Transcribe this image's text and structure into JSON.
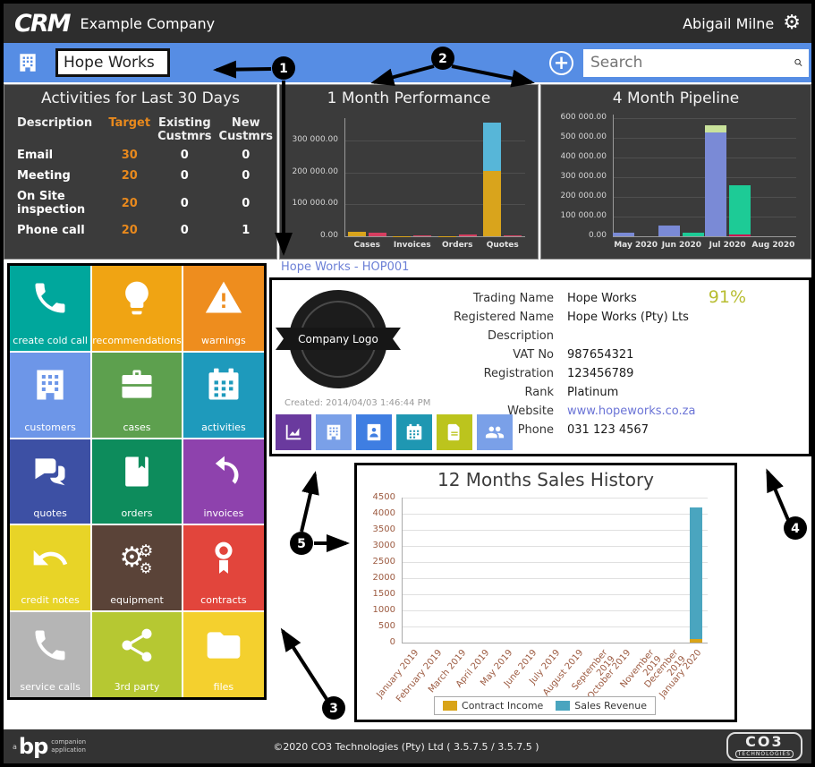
{
  "header": {
    "logo": "CRM",
    "company": "Example Company",
    "user": "Abigail Milne",
    "gear_icon": "gear-icon"
  },
  "toolbar": {
    "customer_input": "Hope Works",
    "search_placeholder": "Search",
    "plus_icon": "plus-circle-icon",
    "building_icon": "building-icon",
    "search_icon": "magnifier-icon"
  },
  "activities": {
    "title": "Activities for Last 30 Days",
    "columns": [
      "Description",
      "Target",
      "Existing\nCustmrs",
      "New\nCustmrs"
    ],
    "rows": [
      {
        "description": "Email",
        "target": "30",
        "existing": "0",
        "new": "0"
      },
      {
        "description": "Meeting",
        "target": "20",
        "existing": "0",
        "new": "0"
      },
      {
        "description": "On Site inspection",
        "target": "20",
        "existing": "0",
        "new": "0"
      },
      {
        "description": "Phone call",
        "target": "20",
        "existing": "0",
        "new": "1"
      }
    ]
  },
  "tiles": [
    {
      "label": "create cold call",
      "color": "#00a79c",
      "icon": "phone-icon"
    },
    {
      "label": "recommendations",
      "color": "#f0a413",
      "icon": "lightbulb-icon"
    },
    {
      "label": "warnings",
      "color": "#ee8d1e",
      "icon": "warning-icon"
    },
    {
      "label": "customers",
      "color": "#6d96e8",
      "icon": "building-icon"
    },
    {
      "label": "cases",
      "color": "#5da04e",
      "icon": "briefcase-icon"
    },
    {
      "label": "activities",
      "color": "#1e9abc",
      "icon": "calendar-icon"
    },
    {
      "label": "quotes",
      "color": "#3d50a4",
      "icon": "chat-bubbles-icon"
    },
    {
      "label": "orders",
      "color": "#0d8c5c",
      "icon": "book-icon"
    },
    {
      "label": "invoices",
      "color": "#8e42ad",
      "icon": "curved-arrow-icon"
    },
    {
      "label": "credit notes",
      "color": "#e8d427",
      "icon": "undo-arrow-icon"
    },
    {
      "label": "equipment",
      "color": "#5a4338",
      "icon": "gears-icon"
    },
    {
      "label": "contracts",
      "color": "#e2453c",
      "icon": "ribbon-icon"
    },
    {
      "label": "service calls",
      "color": "#b5b5b5",
      "icon": "phone-icon"
    },
    {
      "label": "3rd party",
      "color": "#b6c832",
      "icon": "share-icon"
    },
    {
      "label": "files",
      "color": "#f4d02e",
      "icon": "folder-icon"
    }
  ],
  "customer": {
    "link": "Hope Works - HOP001",
    "score": "91%",
    "logo_text": "Company Logo",
    "created": "Created:  2014/04/03 1:46:44 PM",
    "fields": [
      {
        "label": "Trading Name",
        "value": "Hope Works",
        "link": false
      },
      {
        "label": "Registered Name",
        "value": "Hope Works (Pty) Lts",
        "link": false
      },
      {
        "label": "Description",
        "value": "",
        "link": false
      },
      {
        "label": "VAT No",
        "value": "987654321",
        "link": false
      },
      {
        "label": "Registration",
        "value": "123456789",
        "link": false
      },
      {
        "label": "Rank",
        "value": "Platinum",
        "link": false
      },
      {
        "label": "Website",
        "value": "www.hopeworks.co.za",
        "link": true
      },
      {
        "label": "Phone",
        "value": "031 123 4567",
        "link": false
      }
    ],
    "actions": [
      {
        "name": "sales-chart-button",
        "icon": "area-chart-icon",
        "color": "#6a3a9e"
      },
      {
        "name": "customer-button",
        "icon": "building-icon",
        "color": "#7aa0e8"
      },
      {
        "name": "contacts-button",
        "icon": "contact-book-icon",
        "color": "#3f7ee2"
      },
      {
        "name": "activities-button",
        "icon": "calendar-icon",
        "color": "#1f97b2"
      },
      {
        "name": "documents-button",
        "icon": "document-icon",
        "color": "#bcc41d"
      },
      {
        "name": "people-button",
        "icon": "people-icon",
        "color": "#7aa0e8"
      }
    ]
  },
  "chart_data": [
    {
      "id": "performance",
      "type": "bar",
      "title": "1 Month Performance",
      "categories": [
        "Cases",
        "Invoices",
        "Orders",
        "Quotes"
      ],
      "ylim": [
        0,
        370000
      ],
      "yticks": [
        0,
        100000,
        200000,
        300000
      ],
      "ytick_labels": [
        "0.00",
        "100 000.00",
        "200 000.00",
        "300 000.00"
      ],
      "grid": true,
      "series": [
        {
          "name": "amount-base",
          "color": "#d9a41c",
          "bar": 0,
          "values": [
            15000,
            1000,
            1000,
            205000
          ]
        },
        {
          "name": "amount-top",
          "color": "#57b6d8",
          "bar": 0,
          "values": [
            0,
            0,
            0,
            150000
          ]
        },
        {
          "name": "secondary",
          "color": "#d63e60",
          "bar": 1,
          "values": [
            12000,
            3000,
            5000,
            4000
          ]
        }
      ]
    },
    {
      "id": "pipeline",
      "type": "bar",
      "title": "4 Month Pipeline",
      "categories": [
        "May 2020",
        "Jun 2020",
        "Jul 2020",
        "Aug 2020"
      ],
      "ylim": [
        0,
        620000
      ],
      "yticks": [
        0,
        100000,
        200000,
        300000,
        400000,
        500000,
        600000
      ],
      "ytick_labels": [
        "0.00",
        "100 000.00",
        "200 000.00",
        "300 000.00",
        "400 000.00",
        "500 000.00",
        "600 000.00"
      ],
      "grid": true,
      "series": [
        {
          "name": "pipeline-main",
          "color": "#7a8ad6",
          "bar": 0,
          "values": [
            18000,
            55000,
            530000,
            0
          ]
        },
        {
          "name": "pipeline-cap",
          "color": "#c9e29b",
          "bar": 0,
          "values": [
            0,
            0,
            35000,
            0
          ]
        },
        {
          "name": "pipeline-lost",
          "color": "#cc1150",
          "bar": 1,
          "values": [
            0,
            0,
            8000,
            0
          ]
        },
        {
          "name": "pipeline-won",
          "color": "#1dcb96",
          "bar": 1,
          "values": [
            0,
            18000,
            250000,
            0
          ]
        }
      ]
    },
    {
      "id": "sales",
      "type": "bar",
      "title": "12 Months Sales History",
      "categories": [
        "January 2019",
        "February 2019",
        "March 2019",
        "April 2019",
        "May 2019",
        "June 2019",
        "July 2019",
        "August 2019",
        "September 2019",
        "October 2019",
        "November 2019",
        "December 2019",
        "January 2020"
      ],
      "ylim": [
        0,
        4500
      ],
      "yticks": [
        0,
        500,
        1000,
        1500,
        2000,
        2500,
        3000,
        3500,
        4000,
        4500
      ],
      "ytick_labels": [
        "0",
        "500",
        "1000",
        "1500",
        "2000",
        "2500",
        "3000",
        "3500",
        "4000",
        "4500"
      ],
      "grid": true,
      "legend_position": "bottom",
      "series": [
        {
          "name": "Contract Income",
          "color": "#d9a418",
          "bar": 0,
          "values": [
            0,
            0,
            0,
            0,
            0,
            0,
            0,
            0,
            0,
            0,
            0,
            0,
            100
          ]
        },
        {
          "name": "Sales Revenue",
          "color": "#4aa5bf",
          "bar": 0,
          "values": [
            0,
            0,
            0,
            0,
            0,
            0,
            0,
            0,
            0,
            0,
            0,
            0,
            4100
          ]
        }
      ],
      "legend": [
        {
          "name": "Contract Income",
          "color": "#d9a418"
        },
        {
          "name": "Sales Revenue",
          "color": "#4aa5bf"
        }
      ]
    }
  ],
  "annotations": {
    "markers": [
      "1",
      "2",
      "3",
      "4",
      "5"
    ]
  },
  "footer": {
    "copyright": "©2020 CO3 Technologies (Pty) Ltd ( 3.5.7.5 / 3.5.7.5 )",
    "left_logo_prefix": "a",
    "left_logo_main": "bp",
    "left_logo_sub1": "companion",
    "left_logo_sub2": "application",
    "right_logo_main": "CO3",
    "right_logo_sub": "TECHNOLOGIES"
  }
}
